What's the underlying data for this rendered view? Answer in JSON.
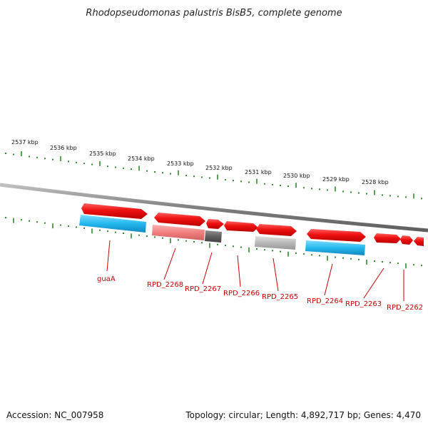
{
  "title": "Rhodopseudomonas palustris BisB5, complete genome",
  "accession": "Accession: NC_007958",
  "topology": "Topology: circular; Length: 4,892,717 bp; Genes: 4,470",
  "scale_labels": [
    "2537 kbp",
    "2536 kbp",
    "2535 kbp",
    "2534 kbp",
    "2533 kbp",
    "2532 kbp",
    "2531 kbp",
    "2530 kbp",
    "2529 kbp",
    "2528 kbp"
  ],
  "colors": {
    "backbone": "#808080",
    "tick": "#2e8b2e",
    "forward_gene": "#ee1111",
    "cds_blue": "#22b8ee",
    "cds_pink": "#f08080",
    "cds_dark": "#606060",
    "cds_light": "#b8b8b8",
    "label": "#cc0000"
  },
  "gene_labels": [
    "guaA",
    "RPD_2268",
    "RPD_2267",
    "RPD_2266",
    "RPD_2265",
    "RPD_2264",
    "RPD_2263",
    "RPD_2262"
  ]
}
